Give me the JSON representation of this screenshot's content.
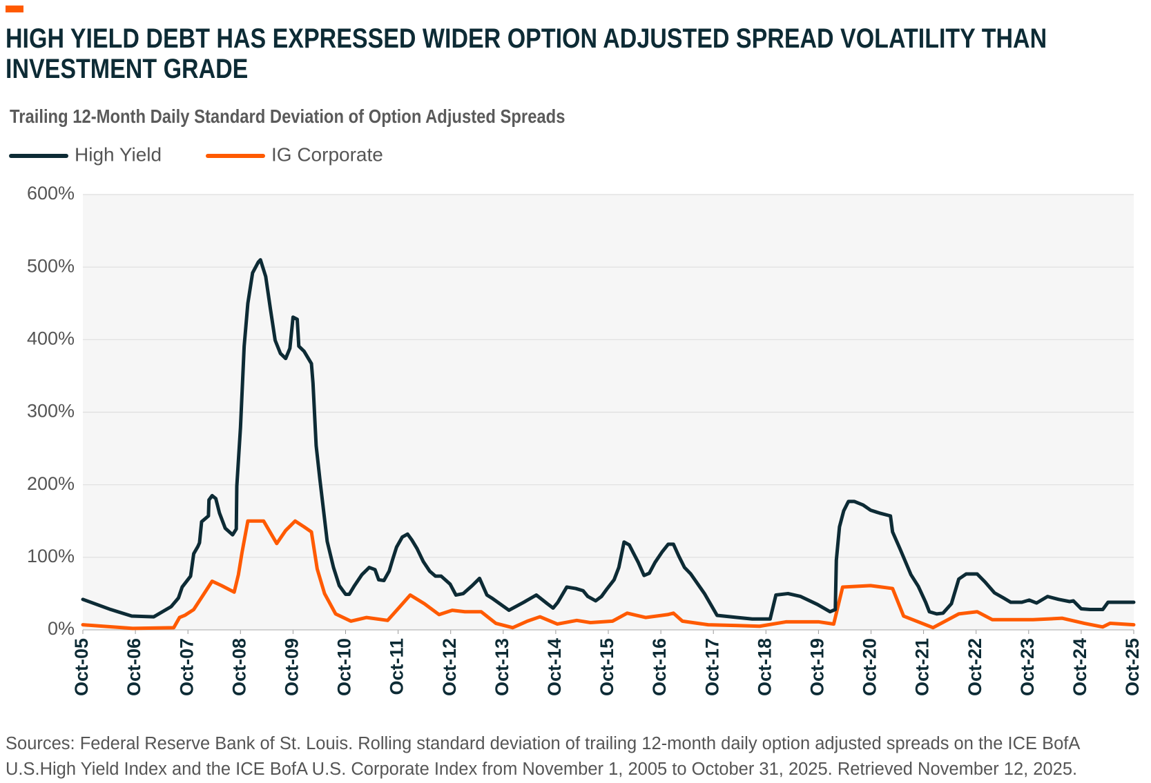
{
  "chart_data": {
    "type": "line",
    "title": "HIGH YIELD DEBT HAS EXPRESSED WIDER OPTION ADJUSTED SPREAD VOLATILITY THAN INVESTMENT GRADE",
    "subtitle": "Trailing 12-Month Daily Standard Deviation of Option Adjusted Spreads",
    "source": "Sources: Federal Reserve Bank of St. Louis. Rolling standard deviation of trailing 12-month daily option adjusted spreads on the ICE BofA U.S.High Yield Index and the ICE BofA U.S. Corporate Index from November 1, 2005 to October 31, 2025. Retrieved November 12, 2025.",
    "xlim": [
      2005.75,
      2025.75
    ],
    "xticks": [
      {
        "value": 2005.75,
        "label": "Oct-05"
      },
      {
        "value": 2006.75,
        "label": "Oct-06"
      },
      {
        "value": 2007.75,
        "label": "Oct-07"
      },
      {
        "value": 2008.75,
        "label": "Oct-08"
      },
      {
        "value": 2009.75,
        "label": "Oct-09"
      },
      {
        "value": 2010.75,
        "label": "Oct-10"
      },
      {
        "value": 2011.75,
        "label": "Oct-11"
      },
      {
        "value": 2012.75,
        "label": "Oct-12"
      },
      {
        "value": 2013.75,
        "label": "Oct-13"
      },
      {
        "value": 2014.75,
        "label": "Oct-14"
      },
      {
        "value": 2015.75,
        "label": "Oct-15"
      },
      {
        "value": 2016.75,
        "label": "Oct-16"
      },
      {
        "value": 2017.75,
        "label": "Oct-17"
      },
      {
        "value": 2018.75,
        "label": "Oct-18"
      },
      {
        "value": 2019.75,
        "label": "Oct-19"
      },
      {
        "value": 2020.75,
        "label": "Oct-20"
      },
      {
        "value": 2021.75,
        "label": "Oct-21"
      },
      {
        "value": 2022.75,
        "label": "Oct-22"
      },
      {
        "value": 2023.75,
        "label": "Oct-23"
      },
      {
        "value": 2024.75,
        "label": "Oct-24"
      },
      {
        "value": 2025.75,
        "label": "Oct-25"
      }
    ],
    "ylim": [
      0,
      600
    ],
    "yticks": [
      {
        "value": 0,
        "label": "0%"
      },
      {
        "value": 100,
        "label": "100%"
      },
      {
        "value": 200,
        "label": "200%"
      },
      {
        "value": 300,
        "label": "300%"
      },
      {
        "value": 400,
        "label": "400%"
      },
      {
        "value": 500,
        "label": "500%"
      },
      {
        "value": 600,
        "label": "600%"
      }
    ],
    "grid": true,
    "legend": "top-left",
    "series": [
      {
        "name": "High Yield",
        "color": "#0d2b35",
        "x": [
          2005.75,
          2006.28,
          2006.68,
          2007.1,
          2007.43,
          2007.57,
          2007.64,
          2007.8,
          2007.86,
          2007.94,
          2007.97,
          2008.01,
          2008.14,
          2008.15,
          2008.21,
          2008.28,
          2008.35,
          2008.46,
          2008.6,
          2008.67,
          2008.68,
          2008.75,
          2008.82,
          2008.89,
          2008.98,
          2009.09,
          2009.13,
          2009.23,
          2009.32,
          2009.41,
          2009.51,
          2009.61,
          2009.69,
          2009.75,
          2009.83,
          2009.86,
          2009.96,
          2010.1,
          2010.13,
          2010.19,
          2010.26,
          2010.4,
          2010.52,
          2010.63,
          2010.75,
          2010.82,
          2010.92,
          2011.06,
          2011.2,
          2011.31,
          2011.38,
          2011.48,
          2011.58,
          2011.65,
          2011.72,
          2011.83,
          2011.93,
          2012.01,
          2012.11,
          2012.23,
          2012.35,
          2012.46,
          2012.57,
          2012.74,
          2012.85,
          2012.99,
          2013.16,
          2013.3,
          2013.44,
          2013.55,
          2013.86,
          2014.14,
          2014.38,
          2014.59,
          2014.7,
          2014.79,
          2014.96,
          2015.13,
          2015.27,
          2015.36,
          2015.51,
          2015.62,
          2015.72,
          2015.86,
          2015.95,
          2016.05,
          2016.15,
          2016.22,
          2016.32,
          2016.43,
          2016.53,
          2016.64,
          2016.77,
          2016.89,
          2016.99,
          2017.09,
          2017.2,
          2017.32,
          2017.58,
          2017.82,
          2018.21,
          2018.49,
          2018.83,
          2018.94,
          2019.17,
          2019.41,
          2019.73,
          2019.97,
          2020.07,
          2020.09,
          2020.15,
          2020.23,
          2020.32,
          2020.43,
          2020.6,
          2020.74,
          2020.91,
          2021.12,
          2021.16,
          2021.3,
          2021.51,
          2021.65,
          2021.79,
          2021.86,
          2022.0,
          2022.12,
          2022.28,
          2022.42,
          2022.56,
          2022.77,
          2022.92,
          2023.1,
          2023.27,
          2023.41,
          2023.62,
          2023.76,
          2023.9,
          2024.11,
          2024.32,
          2024.53,
          2024.6,
          2024.75,
          2024.92,
          2025.16,
          2025.26,
          2025.75
        ],
        "values": [
          42,
          28,
          19,
          18,
          32,
          44,
          59,
          74,
          105,
          115,
          120,
          149,
          157,
          179,
          185,
          181,
          161,
          140,
          131,
          139,
          198,
          279,
          391,
          450,
          492,
          507,
          510,
          487,
          442,
          399,
          381,
          374,
          388,
          431,
          428,
          391,
          384,
          367,
          340,
          254,
          208,
          122,
          86,
          61,
          49,
          49,
          61,
          76,
          86,
          83,
          69,
          68,
          81,
          98,
          114,
          128,
          132,
          124,
          112,
          94,
          81,
          74,
          74,
          63,
          48,
          50,
          61,
          71,
          48,
          43,
          27,
          38,
          48,
          36,
          30,
          38,
          59,
          57,
          54,
          46,
          40,
          46,
          56,
          69,
          86,
          121,
          117,
          107,
          93,
          75,
          78,
          93,
          107,
          118,
          118,
          102,
          86,
          77,
          50,
          20,
          17,
          15,
          15,
          48,
          50,
          46,
          35,
          25,
          28,
          96,
          142,
          164,
          177,
          177,
          172,
          165,
          161,
          157,
          135,
          112,
          76,
          60,
          38,
          25,
          22,
          23,
          36,
          70,
          77,
          77,
          66,
          51,
          44,
          38,
          38,
          41,
          37,
          46,
          42,
          39,
          40,
          29,
          28,
          28,
          38,
          38
        ]
      },
      {
        "name": "IG Corporate",
        "color": "#ff5a00",
        "x": [
          2005.75,
          2006.7,
          2007.48,
          2007.59,
          2007.69,
          2007.86,
          2008.04,
          2008.21,
          2008.39,
          2008.63,
          2008.71,
          2008.78,
          2008.89,
          2009.19,
          2009.44,
          2009.61,
          2009.79,
          2009.96,
          2010.1,
          2010.21,
          2010.35,
          2010.56,
          2010.85,
          2011.15,
          2011.55,
          2011.76,
          2011.98,
          2012.25,
          2012.53,
          2012.78,
          2013.02,
          2013.33,
          2013.61,
          2013.93,
          2014.21,
          2014.45,
          2014.78,
          2015.15,
          2015.41,
          2015.83,
          2016.11,
          2016.46,
          2016.88,
          2016.99,
          2017.16,
          2017.65,
          2018.21,
          2018.63,
          2019.13,
          2019.76,
          2020.04,
          2020.21,
          2020.74,
          2021.16,
          2021.37,
          2021.93,
          2022.42,
          2022.77,
          2023.06,
          2023.83,
          2024.39,
          2024.81,
          2025.16,
          2025.3,
          2025.75
        ],
        "values": [
          7,
          2,
          3,
          17,
          20,
          28,
          48,
          67,
          61,
          52,
          76,
          107,
          150,
          150,
          119,
          137,
          150,
          142,
          135,
          84,
          50,
          22,
          12,
          17,
          13,
          30,
          48,
          36,
          21,
          27,
          25,
          25,
          9,
          3,
          12,
          18,
          8,
          13,
          10,
          12,
          23,
          17,
          21,
          23,
          12,
          7,
          6,
          5,
          11,
          11,
          8,
          59,
          61,
          57,
          19,
          3,
          22,
          25,
          14,
          14,
          16,
          9,
          4,
          9,
          7
        ]
      }
    ]
  }
}
